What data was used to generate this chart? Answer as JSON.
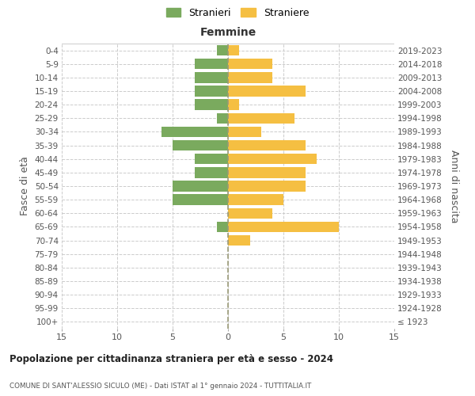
{
  "age_groups": [
    "100+",
    "95-99",
    "90-94",
    "85-89",
    "80-84",
    "75-79",
    "70-74",
    "65-69",
    "60-64",
    "55-59",
    "50-54",
    "45-49",
    "40-44",
    "35-39",
    "30-34",
    "25-29",
    "20-24",
    "15-19",
    "10-14",
    "5-9",
    "0-4"
  ],
  "birth_years": [
    "≤ 1923",
    "1924-1928",
    "1929-1933",
    "1934-1938",
    "1939-1943",
    "1944-1948",
    "1949-1953",
    "1954-1958",
    "1959-1963",
    "1964-1968",
    "1969-1973",
    "1974-1978",
    "1979-1983",
    "1984-1988",
    "1989-1993",
    "1994-1998",
    "1999-2003",
    "2004-2008",
    "2009-2013",
    "2014-2018",
    "2019-2023"
  ],
  "males": [
    0,
    0,
    0,
    0,
    0,
    0,
    0,
    1,
    0,
    5,
    5,
    3,
    3,
    5,
    6,
    1,
    3,
    3,
    3,
    3,
    1
  ],
  "females": [
    0,
    0,
    0,
    0,
    0,
    0,
    2,
    10,
    4,
    5,
    7,
    7,
    8,
    7,
    3,
    6,
    1,
    7,
    4,
    4,
    1
  ],
  "male_color": "#7aaa5e",
  "female_color": "#f5bf42",
  "title": "Popolazione per cittadinanza straniera per età e sesso - 2024",
  "subtitle": "COMUNE DI SANT'ALESSIO SICULO (ME) - Dati ISTAT al 1° gennaio 2024 - TUTTITALIA.IT",
  "ylabel_left": "Fasce di età",
  "ylabel_right": "Anni di nascita",
  "xlim": 15,
  "legend_stranieri": "Stranieri",
  "legend_straniere": "Straniere",
  "femmine_label": "Femmine",
  "bg_color": "#ffffff",
  "grid_color": "#cccccc",
  "center_line_color": "#999977"
}
